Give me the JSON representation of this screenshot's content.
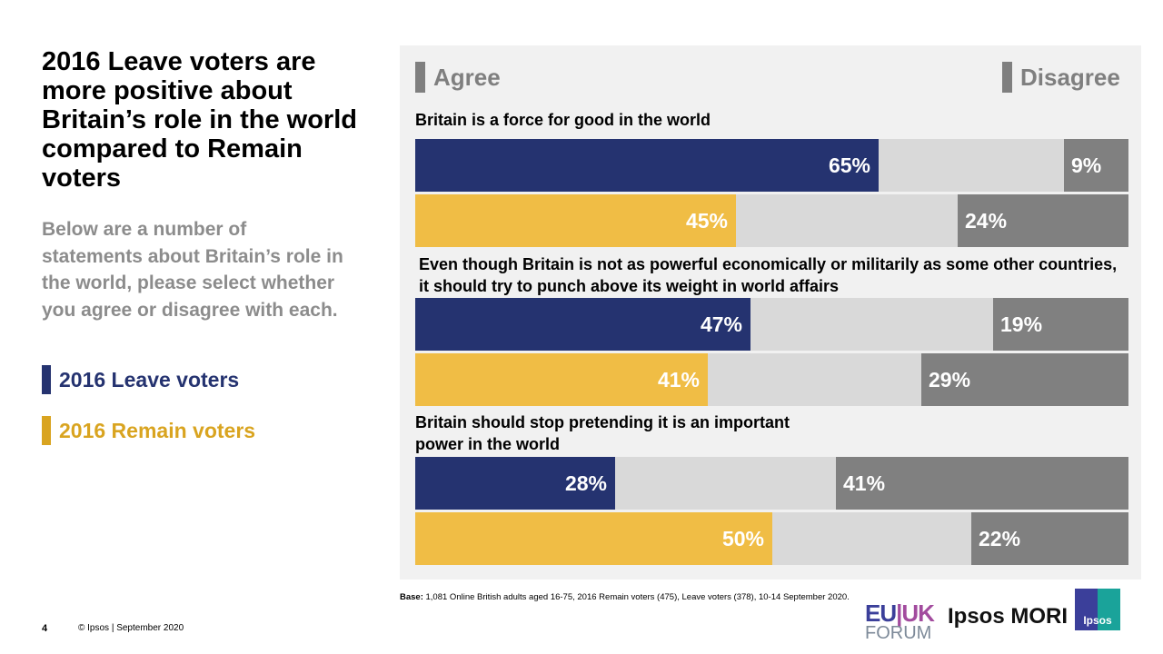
{
  "title": "2016 Leave voters are more positive about Britain’s role in the world compared to Remain voters",
  "subtitle": "Below are a number of statements about Britain’s role in the world, please select whether you agree or disagree with each.",
  "legend": [
    {
      "label": "2016 Leave voters",
      "color": "#253370"
    },
    {
      "label": "2016 Remain voters",
      "color": "#d9a420"
    }
  ],
  "chart_data": {
    "type": "bar",
    "orientation": "horizontal-stacked",
    "header_left": "Agree",
    "header_right": "Disagree",
    "categories": [
      "Britain is a force for good in the world",
      "Even though Britain is not as powerful economically or militarily as some other countries, it should try to punch above its weight in world affairs",
      "Britain should stop pretending it is an important power in the world"
    ],
    "series": [
      {
        "name": "2016 Leave voters",
        "color": "#253370",
        "agree": [
          65,
          47,
          28
        ],
        "disagree": [
          9,
          19,
          41
        ]
      },
      {
        "name": "2016 Remain voters",
        "color": "#f0bd45",
        "agree": [
          45,
          41,
          50
        ],
        "disagree": [
          24,
          29,
          22
        ]
      }
    ],
    "xlim": [
      0,
      100
    ],
    "neutral_color": "#d9d9d9",
    "disagree_color": "#808080"
  },
  "footer": {
    "base_label": "Base:",
    "base_text": " 1,081 Online British adults aged 16-75, 2016 Remain  voters (475), Leave voters (378), 10-14 September 2020.",
    "page": "4",
    "copyright": "© Ipsos | September 2020"
  },
  "logos": {
    "euuk": "EU|UK FORUM",
    "mori": "Ipsos MORI",
    "ipsos": "Ipsos"
  }
}
